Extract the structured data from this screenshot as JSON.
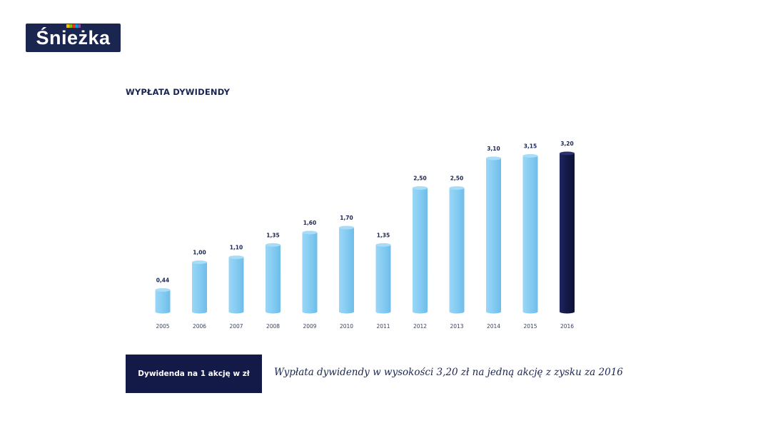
{
  "brand": {
    "name": "Śnieżka",
    "stripe_colors": [
      "#f2c400",
      "#86b817",
      "#e6332a",
      "#0099d8",
      "#8a4b9c"
    ]
  },
  "colors": {
    "bar": "#87cdf3",
    "bar_highlight": "#141a48",
    "text": "#1a2550"
  },
  "legend": {
    "label": "Dywidenda na 1 akcję w zł"
  },
  "note": "Wypłata dywidendy w wysokości 3,20 zł na jedną akcję z zysku za 2016",
  "chart_data": {
    "type": "bar",
    "title": "WYPŁATA DYWIDENDY",
    "categories": [
      "2005",
      "2006",
      "2007",
      "2008",
      "2009",
      "2010",
      "2011",
      "2012",
      "2013",
      "2014",
      "2015",
      "2016"
    ],
    "values": [
      0.44,
      1.0,
      1.1,
      1.35,
      1.6,
      1.7,
      1.35,
      2.5,
      2.5,
      3.1,
      3.15,
      3.2
    ],
    "data_labels": [
      "0,44",
      "1,00",
      "1,10",
      "1,35",
      "1,60",
      "1,70",
      "1,35",
      "2,50",
      "2,50",
      "3,10",
      "3,15",
      "3,20"
    ],
    "highlight_index": 11,
    "ylim": [
      0,
      3.2
    ],
    "grid": false,
    "legend": "bottom-left"
  }
}
